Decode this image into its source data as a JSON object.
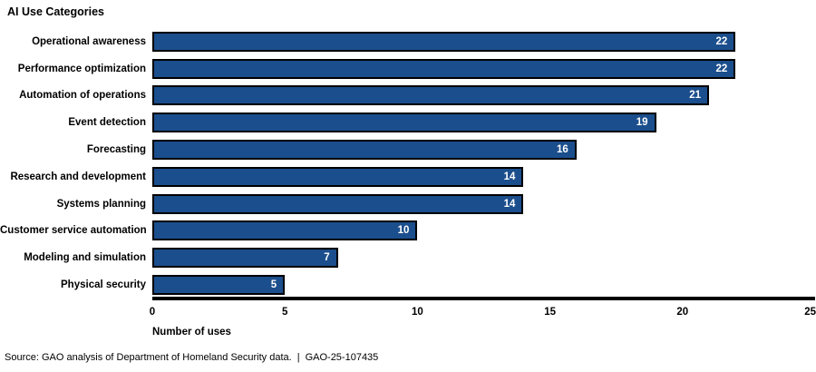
{
  "title": "AI Use Categories",
  "chart_data": {
    "type": "bar",
    "orientation": "horizontal",
    "title": "AI Use Categories",
    "categories": [
      "Operational awareness",
      "Performance optimization",
      "Automation of operations",
      "Event detection",
      "Forecasting",
      "Research and development",
      "Systems planning",
      "Customer service automation",
      "Modeling and simulation",
      "Physical security"
    ],
    "values": [
      22,
      22,
      21,
      19,
      16,
      14,
      14,
      10,
      7,
      5
    ],
    "xlabel": "Number of uses",
    "ylabel": "",
    "xlim": [
      0,
      25
    ],
    "xticks": [
      0,
      5,
      10,
      15,
      20,
      25
    ],
    "grid": false,
    "legend": "none",
    "bar_color": "#1B4E8C",
    "bar_border_color": "#000000",
    "axis_color": "#000000",
    "value_label_color": "#FFFFFF"
  },
  "footer": {
    "source": "Source: GAO analysis of Department of Homeland Security data.",
    "separator": "|",
    "report_id": "GAO-25-107435"
  }
}
